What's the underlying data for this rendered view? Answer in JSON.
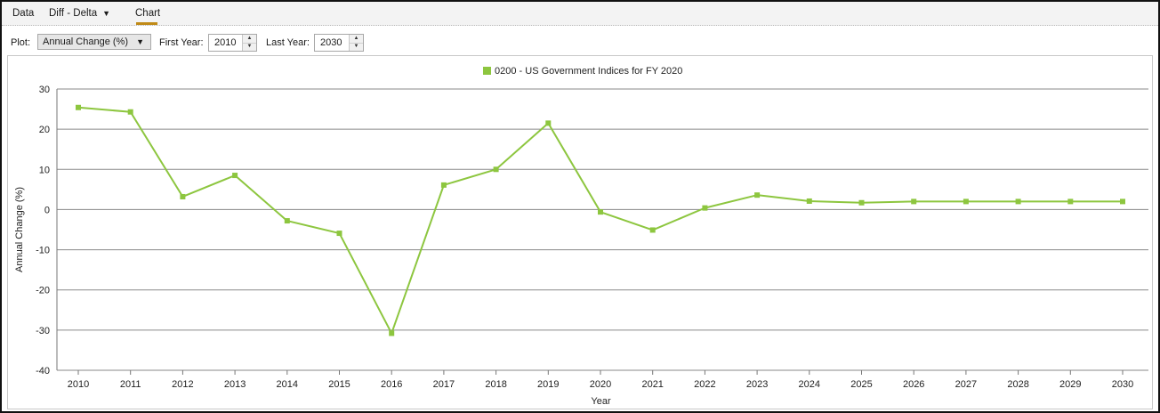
{
  "tabs": [
    {
      "label": "Data",
      "active": false
    },
    {
      "label": "Diff - Delta",
      "dropdown_icon": "triangle-down-icon",
      "active": false
    },
    {
      "label": "Chart",
      "active": true
    }
  ],
  "toolbar": {
    "plot_label": "Plot:",
    "plot_value": "Annual Change (%)",
    "first_year_label": "First Year:",
    "first_year_value": "2010",
    "last_year_label": "Last Year:",
    "last_year_value": "2030"
  },
  "colors": {
    "series": "#8dc63f",
    "gridline": "#8a8a8a",
    "tab_underline": "#c08a17"
  },
  "chart_data": {
    "type": "line",
    "title": "",
    "xlabel": "Year",
    "ylabel": "Annual Change (%)",
    "ylim": [
      -40,
      30
    ],
    "yticks": [
      30,
      20,
      10,
      0,
      -10,
      -20,
      -30,
      -40
    ],
    "grid": true,
    "legend_position": "top-center",
    "x": [
      "2010",
      "2011",
      "2012",
      "2013",
      "2014",
      "2015",
      "2016",
      "2017",
      "2018",
      "2019",
      "2020",
      "2021",
      "2022",
      "2023",
      "2024",
      "2025",
      "2026",
      "2027",
      "2028",
      "2029",
      "2030"
    ],
    "series": [
      {
        "name": "0200 -  US Government Indices for FY 2020",
        "color": "#8dc63f",
        "values": [
          25.4,
          24.3,
          3.2,
          8.5,
          -2.8,
          -5.9,
          -30.8,
          6.1,
          10.0,
          21.5,
          -0.6,
          -5.1,
          0.4,
          3.6,
          2.1,
          1.7,
          2.0,
          2.0,
          2.0,
          2.0,
          2.0
        ]
      }
    ]
  }
}
